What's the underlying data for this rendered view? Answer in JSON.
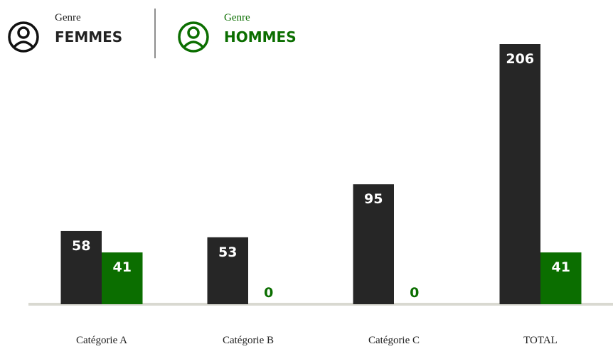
{
  "chart_data": {
    "type": "bar",
    "legend_title": "Genre",
    "categories": [
      "Catégorie A",
      "Catégorie B",
      "Catégorie C",
      "TOTAL"
    ],
    "series": [
      {
        "name": "FEMMES",
        "color": "#262626",
        "values": [
          58,
          53,
          95,
          206
        ]
      },
      {
        "name": "HOMMES",
        "color": "#0b6e00",
        "values": [
          41,
          0,
          0,
          41
        ]
      }
    ],
    "ylim": [
      0,
      206
    ]
  }
}
